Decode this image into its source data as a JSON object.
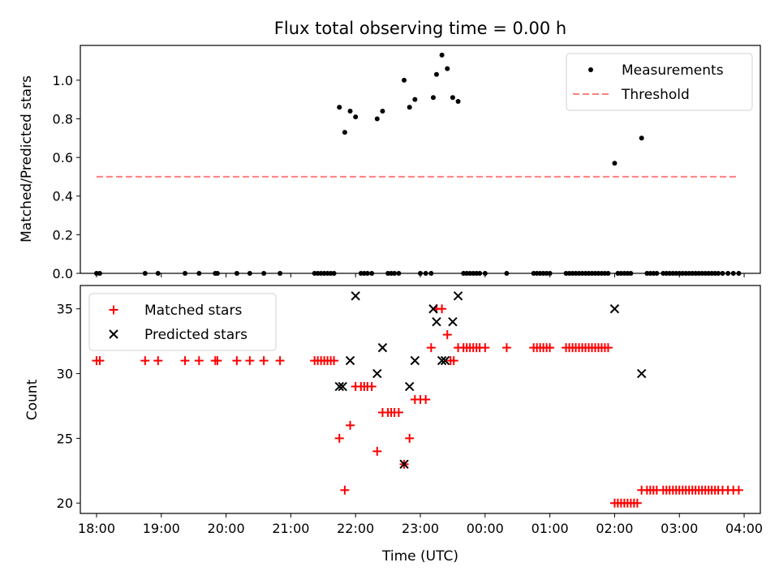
{
  "chart_data": [
    {
      "type": "scatter",
      "title": "Flux total observing time = 0.00 h",
      "xlabel": "",
      "ylabel": "Matched/Predicted stars",
      "xlim": [
        "17:45",
        "04:15"
      ],
      "ylim": [
        0.0,
        1.18
      ],
      "yticks": [
        0.0,
        0.2,
        0.4,
        0.6,
        0.8,
        1.0
      ],
      "ytick_labels": [
        "0.0",
        "0.2",
        "0.4",
        "0.6",
        "0.8",
        "1.0"
      ],
      "grid": false,
      "legend": "top-right",
      "series": [
        {
          "name": "Measurements",
          "marker": "dot",
          "color": "#000000",
          "points": [
            [
              "18:00",
              0
            ],
            [
              "18:03",
              0
            ],
            [
              "18:45",
              0
            ],
            [
              "18:57",
              0
            ],
            [
              "19:22",
              0
            ],
            [
              "19:35",
              0
            ],
            [
              "19:50",
              0
            ],
            [
              "19:52",
              0
            ],
            [
              "20:10",
              0
            ],
            [
              "20:22",
              0
            ],
            [
              "20:35",
              0
            ],
            [
              "20:50",
              0
            ],
            [
              "21:22",
              0
            ],
            [
              "21:25",
              0
            ],
            [
              "21:28",
              0
            ],
            [
              "21:31",
              0
            ],
            [
              "21:34",
              0
            ],
            [
              "21:37",
              0
            ],
            [
              "21:40",
              0
            ],
            [
              "21:45",
              0.86
            ],
            [
              "21:50",
              0.73
            ],
            [
              "21:55",
              0.84
            ],
            [
              "22:00",
              0.81
            ],
            [
              "22:05",
              0
            ],
            [
              "22:08",
              0
            ],
            [
              "22:11",
              0
            ],
            [
              "22:15",
              0
            ],
            [
              "22:20",
              0.8
            ],
            [
              "22:25",
              0.84
            ],
            [
              "22:30",
              0
            ],
            [
              "22:33",
              0
            ],
            [
              "22:36",
              0
            ],
            [
              "22:40",
              0
            ],
            [
              "22:45",
              1.0
            ],
            [
              "22:50",
              0.86
            ],
            [
              "22:55",
              0.9
            ],
            [
              "23:00",
              0
            ],
            [
              "23:05",
              0
            ],
            [
              "23:10",
              0
            ],
            [
              "23:12",
              0.91
            ],
            [
              "23:15",
              1.03
            ],
            [
              "23:20",
              1.13
            ],
            [
              "23:25",
              1.06
            ],
            [
              "23:30",
              0.91
            ],
            [
              "23:35",
              0.89
            ],
            [
              "23:40",
              0
            ],
            [
              "23:43",
              0
            ],
            [
              "23:46",
              0
            ],
            [
              "23:49",
              0
            ],
            [
              "23:52",
              0
            ],
            [
              "23:55",
              0
            ],
            [
              "24:00",
              0
            ],
            [
              "24:20",
              0
            ],
            [
              "24:45",
              0
            ],
            [
              "24:48",
              0
            ],
            [
              "24:51",
              0
            ],
            [
              "24:54",
              0
            ],
            [
              "24:57",
              0
            ],
            [
              "25:00",
              0
            ],
            [
              "25:15",
              0
            ],
            [
              "25:18",
              0
            ],
            [
              "25:21",
              0
            ],
            [
              "25:24",
              0
            ],
            [
              "25:27",
              0
            ],
            [
              "25:30",
              0
            ],
            [
              "25:33",
              0
            ],
            [
              "25:36",
              0
            ],
            [
              "25:39",
              0
            ],
            [
              "25:42",
              0
            ],
            [
              "25:45",
              0
            ],
            [
              "25:48",
              0
            ],
            [
              "25:51",
              0
            ],
            [
              "25:54",
              0
            ],
            [
              "26:00",
              0.57
            ],
            [
              "26:03",
              0
            ],
            [
              "26:06",
              0
            ],
            [
              "26:09",
              0
            ],
            [
              "26:12",
              0
            ],
            [
              "26:15",
              0
            ],
            [
              "26:25",
              0.7
            ],
            [
              "26:30",
              0
            ],
            [
              "26:33",
              0
            ],
            [
              "26:36",
              0
            ],
            [
              "26:39",
              0
            ],
            [
              "26:45",
              0
            ],
            [
              "26:48",
              0
            ],
            [
              "26:51",
              0
            ],
            [
              "26:54",
              0
            ],
            [
              "26:57",
              0
            ],
            [
              "27:00",
              0
            ],
            [
              "27:03",
              0
            ],
            [
              "27:06",
              0
            ],
            [
              "27:09",
              0
            ],
            [
              "27:12",
              0
            ],
            [
              "27:15",
              0
            ],
            [
              "27:18",
              0
            ],
            [
              "27:21",
              0
            ],
            [
              "27:24",
              0
            ],
            [
              "27:27",
              0
            ],
            [
              "27:30",
              0
            ],
            [
              "27:33",
              0
            ],
            [
              "27:36",
              0
            ],
            [
              "27:40",
              0
            ],
            [
              "27:45",
              0
            ],
            [
              "27:50",
              0
            ],
            [
              "27:55",
              0
            ]
          ]
        },
        {
          "name": "Threshold",
          "marker": "dashed-line",
          "color": "#ff7f7f",
          "points": [
            [
              "18:00",
              0.5
            ],
            [
              "27:55",
              0.5
            ]
          ]
        }
      ]
    },
    {
      "type": "scatter",
      "title": "",
      "xlabel": "Time (UTC)",
      "ylabel": "Count",
      "xlim": [
        "17:45",
        "04:15"
      ],
      "ylim": [
        19.2,
        36.8
      ],
      "xticks": [
        "18:00",
        "19:00",
        "20:00",
        "21:00",
        "22:00",
        "23:00",
        "00:00",
        "01:00",
        "02:00",
        "03:00",
        "04:00"
      ],
      "yticks": [
        20,
        25,
        30,
        35
      ],
      "ytick_labels": [
        "20",
        "25",
        "30",
        "35"
      ],
      "grid": false,
      "legend": "top-left",
      "series": [
        {
          "name": "Matched stars",
          "marker": "plus",
          "color": "#ff0000",
          "points": [
            [
              "18:00",
              31
            ],
            [
              "18:03",
              31
            ],
            [
              "18:45",
              31
            ],
            [
              "18:57",
              31
            ],
            [
              "19:22",
              31
            ],
            [
              "19:35",
              31
            ],
            [
              "19:50",
              31
            ],
            [
              "19:52",
              31
            ],
            [
              "20:10",
              31
            ],
            [
              "20:22",
              31
            ],
            [
              "20:35",
              31
            ],
            [
              "20:50",
              31
            ],
            [
              "21:22",
              31
            ],
            [
              "21:25",
              31
            ],
            [
              "21:28",
              31
            ],
            [
              "21:31",
              31
            ],
            [
              "21:34",
              31
            ],
            [
              "21:37",
              31
            ],
            [
              "21:40",
              31
            ],
            [
              "21:45",
              25
            ],
            [
              "21:50",
              21
            ],
            [
              "21:55",
              26
            ],
            [
              "22:00",
              29
            ],
            [
              "22:05",
              29
            ],
            [
              "22:08",
              29
            ],
            [
              "22:11",
              29
            ],
            [
              "22:15",
              29
            ],
            [
              "22:20",
              24
            ],
            [
              "22:25",
              27
            ],
            [
              "22:30",
              27
            ],
            [
              "22:33",
              27
            ],
            [
              "22:36",
              27
            ],
            [
              "22:40",
              27
            ],
            [
              "22:45",
              23
            ],
            [
              "22:50",
              25
            ],
            [
              "22:55",
              28
            ],
            [
              "23:00",
              28
            ],
            [
              "23:05",
              28
            ],
            [
              "23:10",
              32
            ],
            [
              "23:15",
              35
            ],
            [
              "23:20",
              35
            ],
            [
              "23:25",
              33
            ],
            [
              "23:28",
              31
            ],
            [
              "23:31",
              31
            ],
            [
              "23:35",
              32
            ],
            [
              "23:40",
              32
            ],
            [
              "23:43",
              32
            ],
            [
              "23:46",
              32
            ],
            [
              "23:49",
              32
            ],
            [
              "23:52",
              32
            ],
            [
              "23:55",
              32
            ],
            [
              "24:00",
              32
            ],
            [
              "24:20",
              32
            ],
            [
              "24:45",
              32
            ],
            [
              "24:48",
              32
            ],
            [
              "24:51",
              32
            ],
            [
              "24:54",
              32
            ],
            [
              "24:57",
              32
            ],
            [
              "25:00",
              32
            ],
            [
              "25:15",
              32
            ],
            [
              "25:18",
              32
            ],
            [
              "25:21",
              32
            ],
            [
              "25:24",
              32
            ],
            [
              "25:27",
              32
            ],
            [
              "25:30",
              32
            ],
            [
              "25:33",
              32
            ],
            [
              "25:36",
              32
            ],
            [
              "25:39",
              32
            ],
            [
              "25:42",
              32
            ],
            [
              "25:45",
              32
            ],
            [
              "25:48",
              32
            ],
            [
              "25:51",
              32
            ],
            [
              "25:54",
              32
            ],
            [
              "26:00",
              20
            ],
            [
              "26:03",
              20
            ],
            [
              "26:06",
              20
            ],
            [
              "26:09",
              20
            ],
            [
              "26:12",
              20
            ],
            [
              "26:15",
              20
            ],
            [
              "26:18",
              20
            ],
            [
              "26:21",
              20
            ],
            [
              "26:25",
              21
            ],
            [
              "26:30",
              21
            ],
            [
              "26:33",
              21
            ],
            [
              "26:36",
              21
            ],
            [
              "26:39",
              21
            ],
            [
              "26:45",
              21
            ],
            [
              "26:48",
              21
            ],
            [
              "26:51",
              21
            ],
            [
              "26:54",
              21
            ],
            [
              "26:57",
              21
            ],
            [
              "27:00",
              21
            ],
            [
              "27:03",
              21
            ],
            [
              "27:06",
              21
            ],
            [
              "27:09",
              21
            ],
            [
              "27:12",
              21
            ],
            [
              "27:15",
              21
            ],
            [
              "27:18",
              21
            ],
            [
              "27:21",
              21
            ],
            [
              "27:24",
              21
            ],
            [
              "27:27",
              21
            ],
            [
              "27:30",
              21
            ],
            [
              "27:33",
              21
            ],
            [
              "27:36",
              21
            ],
            [
              "27:40",
              21
            ],
            [
              "27:45",
              21
            ],
            [
              "27:50",
              21
            ],
            [
              "27:55",
              21
            ]
          ]
        },
        {
          "name": "Predicted stars",
          "marker": "x",
          "color": "#000000",
          "points": [
            [
              "21:45",
              29
            ],
            [
              "21:48",
              29
            ],
            [
              "21:55",
              31
            ],
            [
              "22:00",
              36
            ],
            [
              "22:20",
              30
            ],
            [
              "22:25",
              32
            ],
            [
              "22:45",
              23
            ],
            [
              "22:50",
              29
            ],
            [
              "22:55",
              31
            ],
            [
              "23:12",
              35
            ],
            [
              "23:15",
              34
            ],
            [
              "23:20",
              31
            ],
            [
              "23:23",
              31
            ],
            [
              "23:30",
              34
            ],
            [
              "23:35",
              36
            ],
            [
              "26:00",
              35
            ],
            [
              "26:25",
              30
            ]
          ]
        }
      ]
    }
  ]
}
